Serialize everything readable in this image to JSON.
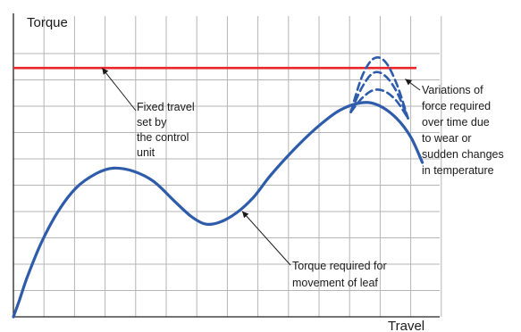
{
  "chart_data": {
    "type": "line",
    "ylabel": "Torque",
    "xlabel": "Travel",
    "grid": true,
    "reference_line": {
      "color": "#e8262a",
      "value": 7.9
    },
    "series": [
      {
        "color": "#2e5caa",
        "style": "solid",
        "x": [
          0,
          0.1,
          0.25,
          0.5,
          0.8,
          1.1,
          1.45,
          1.75,
          2.1,
          2.45,
          2.8,
          3.1,
          3.35,
          3.6,
          3.9,
          4.2,
          4.5,
          4.9,
          5.3,
          5.7,
          6.1,
          6.4,
          6.7,
          6.95,
          7.15
        ],
        "values": [
          0,
          0.5,
          1.3,
          2.4,
          3.4,
          4.1,
          4.55,
          4.72,
          4.62,
          4.3,
          3.7,
          3.2,
          2.95,
          3.0,
          3.3,
          3.8,
          4.5,
          5.3,
          6.0,
          6.55,
          6.8,
          6.7,
          6.3,
          5.7,
          4.9
        ]
      },
      {
        "color": "#2e5caa",
        "style": "dashed",
        "x": [
          5.9,
          6.1,
          6.3,
          6.5,
          6.7,
          6.9
        ],
        "values": [
          6.5,
          6.95,
          7.2,
          7.15,
          6.85,
          6.3
        ]
      },
      {
        "color": "#2e5caa",
        "style": "dashed",
        "x": [
          5.9,
          6.1,
          6.3,
          6.5,
          6.7,
          6.9
        ],
        "values": [
          6.5,
          7.3,
          7.75,
          7.65,
          7.15,
          6.3
        ]
      },
      {
        "color": "#2e5caa",
        "style": "dashed",
        "x": [
          5.9,
          6.1,
          6.3,
          6.5,
          6.7,
          6.9
        ],
        "values": [
          6.5,
          7.65,
          8.2,
          8.1,
          7.4,
          6.3
        ]
      }
    ],
    "annotations": [
      {
        "name": "fixed-travel",
        "lines": [
          "Fixed travel",
          "set by",
          "the control",
          "unit"
        ],
        "arrow_x": 1.55,
        "arrow_y": 7.9
      },
      {
        "name": "variations",
        "lines": [
          "Variations of",
          "force required",
          "over time due",
          "to wear or",
          "sudden changes",
          "in temperature"
        ],
        "arrow_x": 6.85,
        "arrow_y": 7.55
      },
      {
        "name": "torque-required",
        "lines": [
          "Torque required for",
          "movement of leaf"
        ],
        "arrow_x": 4.0,
        "arrow_y": 3.35
      }
    ]
  }
}
